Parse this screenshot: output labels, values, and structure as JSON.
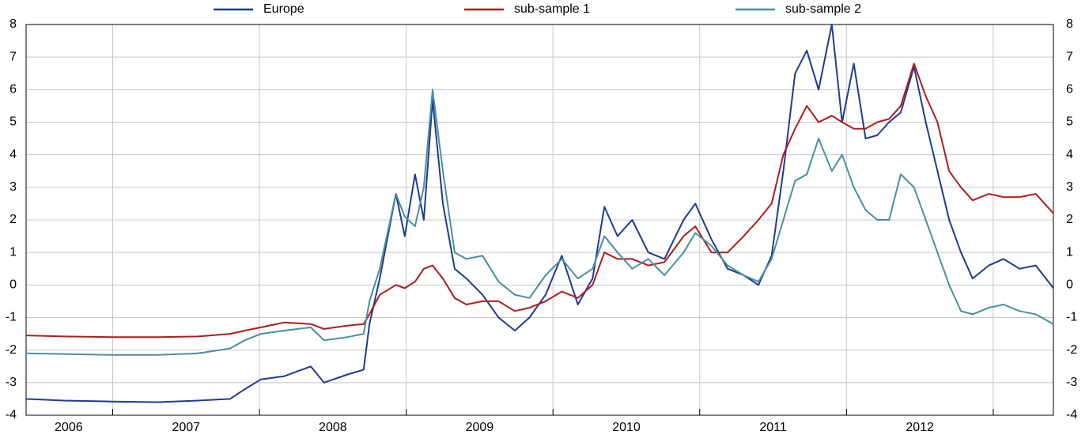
{
  "chart_data": {
    "type": "line",
    "x": [
      2006.41,
      2006.67,
      2007.0,
      2007.31,
      2007.58,
      2007.8,
      2007.9,
      2008.01,
      2008.17,
      2008.35,
      2008.44,
      2008.6,
      2008.71,
      2008.75,
      2008.82,
      2008.93,
      2008.99,
      2009.06,
      2009.12,
      2009.18,
      2009.25,
      2009.33,
      2009.41,
      2009.52,
      2009.63,
      2009.74,
      2009.84,
      2009.95,
      2010.06,
      2010.17,
      2010.27,
      2010.35,
      2010.44,
      2010.54,
      2010.65,
      2010.76,
      2010.89,
      2010.97,
      2011.08,
      2011.19,
      2011.3,
      2011.4,
      2011.49,
      2011.57,
      2011.65,
      2011.73,
      2011.81,
      2011.9,
      2011.97,
      2012.05,
      2012.13,
      2012.21,
      2012.29,
      2012.37,
      2012.46,
      2012.54,
      2012.62,
      2012.7,
      2012.78,
      2012.86,
      2012.97,
      2013.07,
      2013.18,
      2013.29,
      2013.41
    ],
    "series": [
      {
        "name": "Europe",
        "color": "#1f3a93",
        "values": [
          -3.5,
          -3.55,
          -3.58,
          -3.6,
          -3.55,
          -3.5,
          -3.2,
          -2.9,
          -2.8,
          -2.5,
          -3.0,
          -2.75,
          -2.6,
          -1.2,
          0.2,
          2.8,
          1.5,
          3.4,
          2.0,
          5.7,
          2.5,
          0.5,
          0.2,
          -0.3,
          -1.0,
          -1.4,
          -1.0,
          -0.3,
          0.9,
          -0.6,
          0.2,
          2.4,
          1.5,
          2.0,
          1.0,
          0.8,
          2.0,
          2.5,
          1.4,
          0.5,
          0.3,
          0.0,
          0.9,
          3.5,
          6.5,
          7.2,
          6.0,
          8.0,
          5.0,
          6.8,
          4.5,
          4.6,
          5.0,
          5.3,
          6.7,
          5.0,
          3.5,
          2.0,
          1.0,
          0.2,
          0.6,
          0.8,
          0.5,
          0.6,
          -0.1
        ]
      },
      {
        "name": "sub-sample 1",
        "color": "#b01c1c",
        "values": [
          -1.55,
          -1.58,
          -1.6,
          -1.6,
          -1.58,
          -1.5,
          -1.4,
          -1.3,
          -1.15,
          -1.2,
          -1.35,
          -1.25,
          -1.2,
          -0.9,
          -0.3,
          0.0,
          -0.1,
          0.1,
          0.5,
          0.6,
          0.2,
          -0.4,
          -0.6,
          -0.5,
          -0.5,
          -0.8,
          -0.7,
          -0.5,
          -0.2,
          -0.4,
          0.0,
          1.0,
          0.8,
          0.8,
          0.6,
          0.7,
          1.5,
          1.8,
          1.0,
          1.0,
          1.5,
          2.0,
          2.5,
          4.0,
          4.8,
          5.5,
          5.0,
          5.2,
          5.0,
          4.8,
          4.8,
          5.0,
          5.1,
          5.5,
          6.8,
          5.8,
          5.0,
          3.5,
          3.0,
          2.6,
          2.8,
          2.7,
          2.7,
          2.8,
          2.2
        ]
      },
      {
        "name": "sub-sample 2",
        "color": "#4a8fa0",
        "values": [
          -2.1,
          -2.12,
          -2.15,
          -2.15,
          -2.1,
          -1.95,
          -1.7,
          -1.5,
          -1.4,
          -1.3,
          -1.7,
          -1.6,
          -1.5,
          -0.5,
          0.5,
          2.8,
          2.1,
          1.8,
          3.0,
          6.0,
          3.5,
          1.0,
          0.8,
          0.9,
          0.1,
          -0.3,
          -0.4,
          0.3,
          0.8,
          0.2,
          0.5,
          1.5,
          1.0,
          0.5,
          0.8,
          0.3,
          1.0,
          1.6,
          1.2,
          0.6,
          0.3,
          0.1,
          0.8,
          2.0,
          3.2,
          3.4,
          4.5,
          3.5,
          4.0,
          3.0,
          2.3,
          2.0,
          2.0,
          3.4,
          3.0,
          2.0,
          1.0,
          0.0,
          -0.8,
          -0.9,
          -0.7,
          -0.6,
          -0.8,
          -0.9,
          -1.2
        ]
      }
    ],
    "xlim": [
      2006.41,
      2013.41
    ],
    "xticks": [
      {
        "value": 2006.7,
        "label": "2006"
      },
      {
        "value": 2007.5,
        "label": "2007"
      },
      {
        "value": 2008.5,
        "label": "2008"
      },
      {
        "value": 2009.5,
        "label": "2009"
      },
      {
        "value": 2010.5,
        "label": "2010"
      },
      {
        "value": 2011.5,
        "label": "2011"
      },
      {
        "value": 2012.5,
        "label": "2012"
      }
    ],
    "xgrid": [
      2007,
      2008,
      2009,
      2010,
      2011,
      2012,
      2013
    ],
    "ylim": [
      -4,
      8
    ],
    "yticks": [
      -4,
      -3,
      -2,
      -1,
      0,
      1,
      2,
      3,
      4,
      5,
      6,
      7,
      8
    ],
    "right_axis": true,
    "grid": true,
    "legend": "top"
  }
}
